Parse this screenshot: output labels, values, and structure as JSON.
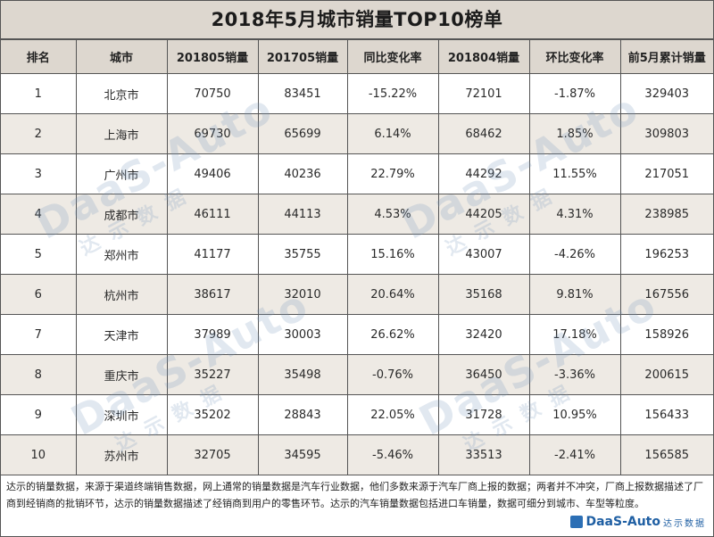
{
  "title": "2018年5月城市销量TOP10榜单",
  "table": {
    "headers": [
      "排名",
      "城市",
      "201805销量",
      "201705销量",
      "同比变化率",
      "201804销量",
      "环比变化率",
      "前5月累计销量"
    ],
    "rows": [
      [
        "1",
        "北京市",
        "70750",
        "83451",
        "-15.22%",
        "72101",
        "-1.87%",
        "329403"
      ],
      [
        "2",
        "上海市",
        "69730",
        "65699",
        "6.14%",
        "68462",
        "1.85%",
        "309803"
      ],
      [
        "3",
        "广州市",
        "49406",
        "40236",
        "22.79%",
        "44292",
        "11.55%",
        "217051"
      ],
      [
        "4",
        "成都市",
        "46111",
        "44113",
        "4.53%",
        "44205",
        "4.31%",
        "238985"
      ],
      [
        "5",
        "郑州市",
        "41177",
        "35755",
        "15.16%",
        "43007",
        "-4.26%",
        "196253"
      ],
      [
        "6",
        "杭州市",
        "38617",
        "32010",
        "20.64%",
        "35168",
        "9.81%",
        "167556"
      ],
      [
        "7",
        "天津市",
        "37989",
        "30003",
        "26.62%",
        "32420",
        "17.18%",
        "158926"
      ],
      [
        "8",
        "重庆市",
        "35227",
        "35498",
        "-0.76%",
        "36450",
        "-3.36%",
        "200615"
      ],
      [
        "9",
        "深圳市",
        "35202",
        "28843",
        "22.05%",
        "31728",
        "10.95%",
        "156433"
      ],
      [
        "10",
        "苏州市",
        "32705",
        "34595",
        "-5.46%",
        "33513",
        "-2.41%",
        "156585"
      ]
    ]
  },
  "watermark": {
    "brand": "DaaS-Auto",
    "sub": "达示数据"
  },
  "footer": {
    "note": "达示的销量数据，来源于渠道终端销售数据，网上通常的销量数据是汽车行业数据，他们多数来源于汽车厂商上报的数据；两者并不冲突，厂商上报数据描述了厂商到经销商的批销环节，达示的销量数据描述了经销商到用户的零售环节。达示的汽车销量数据包括进口车销量，数据可细分到城市、车型等粒度。",
    "logo_text": "DaaS-Auto",
    "logo_sub": "达示数据"
  },
  "colors": {
    "header_bg": "#ddd7cf",
    "stripe_bg": "#eeeae4",
    "logo_blue": "#1f5fa3"
  }
}
